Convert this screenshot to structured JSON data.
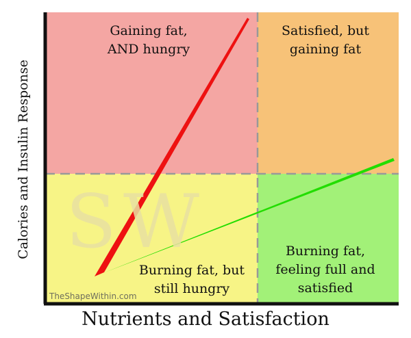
{
  "axes": {
    "x_title": "Nutrients and Satisfaction",
    "y_title": "Calories and Insulin Response"
  },
  "quadrants": {
    "top_left": {
      "label": "Gaining fat,\nAND hungry",
      "color": "#f4a6a3"
    },
    "top_right": {
      "label": "Satisfied, but\ngaining fat",
      "color": "#f7c278"
    },
    "bottom_left": {
      "label": "Burning fat, but\nstill hungry",
      "color": "#f7f486"
    },
    "bottom_right": {
      "label": "Burning fat,\nfeeling full and\nsatisfied",
      "color": "#a2f178"
    }
  },
  "arrows": {
    "red": {
      "color": "#ee1111"
    },
    "green": {
      "color": "#22dd00"
    }
  },
  "watermark": {
    "text": "SW"
  },
  "credit": "TheShapeWithin.com",
  "divider_color": "#999999",
  "axis_color": "#111111"
}
